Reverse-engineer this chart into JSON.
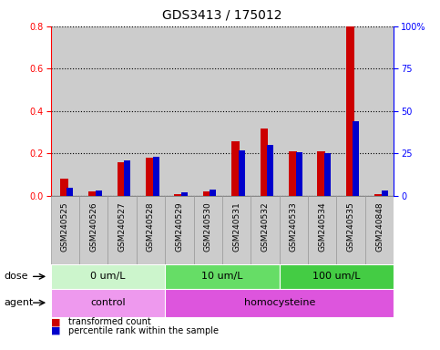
{
  "title": "GDS3413 / 175012",
  "samples": [
    "GSM240525",
    "GSM240526",
    "GSM240527",
    "GSM240528",
    "GSM240529",
    "GSM240530",
    "GSM240531",
    "GSM240532",
    "GSM240533",
    "GSM240534",
    "GSM240535",
    "GSM240848"
  ],
  "red_values": [
    0.08,
    0.02,
    0.16,
    0.18,
    0.01,
    0.02,
    0.26,
    0.32,
    0.21,
    0.21,
    0.8,
    0.01
  ],
  "blue_values": [
    5,
    3,
    21,
    23,
    2,
    4,
    27,
    30,
    26,
    25,
    44,
    3
  ],
  "left_ylim": [
    0,
    0.8
  ],
  "right_ylim": [
    0,
    100
  ],
  "left_yticks": [
    0.0,
    0.2,
    0.4,
    0.6,
    0.8
  ],
  "right_yticks": [
    0,
    25,
    50,
    75,
    100
  ],
  "right_yticklabels": [
    "0",
    "25",
    "50",
    "75",
    "100%"
  ],
  "dose_groups": [
    {
      "label": "0 um/L",
      "start": 0,
      "end": 4,
      "color": "#ccf5cc"
    },
    {
      "label": "10 um/L",
      "start": 4,
      "end": 8,
      "color": "#66dd66"
    },
    {
      "label": "100 um/L",
      "start": 8,
      "end": 12,
      "color": "#44cc44"
    }
  ],
  "agent_groups": [
    {
      "label": "control",
      "start": 0,
      "end": 4,
      "color": "#ee99ee"
    },
    {
      "label": "homocysteine",
      "start": 4,
      "end": 12,
      "color": "#dd55dd"
    }
  ],
  "dose_label": "dose",
  "agent_label": "agent",
  "red_color": "#cc0000",
  "blue_color": "#0000cc",
  "bar_bg_color": "#cccccc",
  "bar_bg_edge_color": "#999999",
  "legend_red": "transformed count",
  "legend_blue": "percentile rank within the sample",
  "red_bar_width": 0.28,
  "blue_bar_width": 0.22,
  "title_fontsize": 10,
  "tick_fontsize": 7,
  "label_fontsize": 8,
  "sample_fontsize": 6.5
}
